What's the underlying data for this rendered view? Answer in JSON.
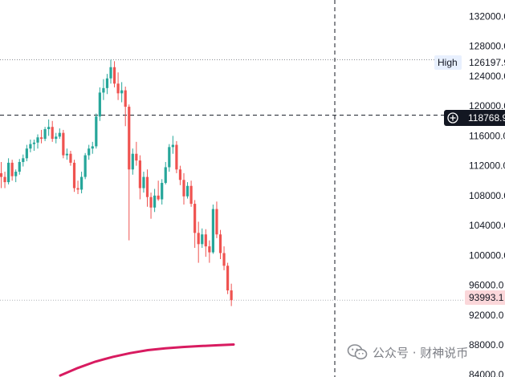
{
  "chart_data": {
    "type": "candlestick",
    "title": "",
    "xlabel": "",
    "ylabel": "",
    "ylim": [
      83700,
      134200
    ],
    "y_ticks": [
      "132000.0",
      "128000.0",
      "124000.0",
      "120000.0",
      "116000.0",
      "112000.0",
      "108000.0",
      "104000.0",
      "100000.0",
      "96000.0",
      "92000.0",
      "88000.0",
      "84000.0"
    ],
    "y_tick_values": [
      132000,
      128000,
      124000,
      120000,
      116000,
      112000,
      108000,
      104000,
      100000,
      96000,
      92000,
      88000,
      84000
    ],
    "high_label": "High",
    "high_value": 126197.9,
    "high_value_text": "126197.9",
    "crosshair_value": 118768.9,
    "crosshair_value_text": "118768.9",
    "last_price": 93993.1,
    "last_price_text": "93993.1",
    "moving_average": {
      "color": "#d81b60",
      "x": [
        0,
        10,
        20,
        30,
        40,
        50,
        60,
        70,
        80,
        90,
        99
      ],
      "values": [
        83900,
        84900,
        85750,
        86400,
        86900,
        87300,
        87550,
        87720,
        87850,
        87960,
        88050
      ]
    },
    "candles_ohlc": [
      [
        111000,
        112500,
        109000,
        110500
      ],
      [
        110500,
        111200,
        109000,
        109800
      ],
      [
        109800,
        113000,
        109500,
        112400
      ],
      [
        112400,
        112800,
        110000,
        110600
      ],
      [
        110600,
        111500,
        109800,
        111200
      ],
      [
        111200,
        112900,
        110800,
        112500
      ],
      [
        112500,
        113500,
        111900,
        113000
      ],
      [
        113000,
        114800,
        112600,
        114300
      ],
      [
        114300,
        115500,
        113800,
        114900
      ],
      [
        114900,
        115500,
        114000,
        115100
      ],
      [
        115100,
        116200,
        114300,
        115800
      ],
      [
        115800,
        116800,
        115000,
        115600
      ],
      [
        115600,
        117200,
        115300,
        116900
      ],
      [
        116900,
        118200,
        116000,
        117200
      ],
      [
        117200,
        118000,
        115200,
        115600
      ],
      [
        115600,
        116400,
        115000,
        115900
      ],
      [
        115900,
        117000,
        115600,
        116400
      ],
      [
        116400,
        116800,
        113000,
        113400
      ],
      [
        113400,
        114300,
        112800,
        113600
      ],
      [
        113600,
        114000,
        112000,
        112400
      ],
      [
        112400,
        112800,
        108500,
        109000
      ],
      [
        109000,
        110000,
        108200,
        108800
      ],
      [
        108800,
        111200,
        108300,
        110500
      ],
      [
        110500,
        113700,
        110200,
        113400
      ],
      [
        113400,
        114800,
        112800,
        114300
      ],
      [
        114300,
        115200,
        113600,
        114600
      ],
      [
        114600,
        119000,
        114300,
        118600
      ],
      [
        118600,
        122500,
        118000,
        121800
      ],
      [
        121800,
        123600,
        120800,
        122400
      ],
      [
        122400,
        124300,
        121600,
        123700
      ],
      [
        123700,
        126197.9,
        123000,
        125200
      ],
      [
        125200,
        126000,
        122500,
        123000
      ],
      [
        123000,
        124500,
        120800,
        121700
      ],
      [
        121700,
        123200,
        120500,
        122100
      ],
      [
        122100,
        122600,
        117300,
        119900
      ],
      [
        119900,
        120200,
        102000,
        111500
      ],
      [
        111500,
        114300,
        110800,
        113600
      ],
      [
        113600,
        115200,
        112000,
        112700
      ],
      [
        112700,
        113400,
        107500,
        109000
      ],
      [
        109000,
        111200,
        108400,
        110500
      ],
      [
        110500,
        111500,
        106500,
        107800
      ],
      [
        107800,
        108400,
        104900,
        106400
      ],
      [
        106400,
        108900,
        105800,
        108000
      ],
      [
        108000,
        110000,
        107300,
        107500
      ],
      [
        107500,
        110200,
        106800,
        109700
      ],
      [
        109700,
        112500,
        109500,
        111800
      ],
      [
        111800,
        114900,
        111200,
        114500
      ],
      [
        114500,
        116000,
        113600,
        114800
      ],
      [
        114800,
        115300,
        111000,
        111500
      ],
      [
        111500,
        112000,
        109400,
        110100
      ],
      [
        110100,
        111000,
        106800,
        107900
      ],
      [
        107900,
        109800,
        107600,
        109300
      ],
      [
        109300,
        110000,
        106500,
        106900
      ],
      [
        106900,
        107400,
        101000,
        103000
      ],
      [
        103000,
        104500,
        99000,
        101500
      ],
      [
        101500,
        103600,
        101000,
        102800
      ],
      [
        102800,
        103500,
        99800,
        101200
      ],
      [
        101200,
        102000,
        99000,
        100400
      ],
      [
        100400,
        106800,
        100200,
        106200
      ],
      [
        106200,
        107200,
        102300,
        102800
      ],
      [
        102800,
        103400,
        99500,
        100300
      ],
      [
        100300,
        101200,
        98000,
        98600
      ],
      [
        98600,
        99000,
        94800,
        95300
      ],
      [
        95300,
        96200,
        93200,
        93993.1
      ]
    ]
  },
  "watermark": {
    "text": "公众号 · 财神说币"
  },
  "colors": {
    "up": "#26a69a",
    "down": "#ef5350",
    "last_price_bg": "#fbd7da",
    "last_price_text": "#131722",
    "crosshair_label_bg": "#131722",
    "high_tag_bg": "#e8f0fe"
  }
}
